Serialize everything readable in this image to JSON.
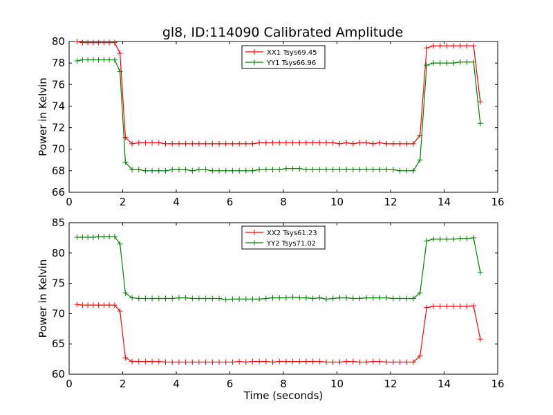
{
  "chart_data": [
    {
      "type": "line",
      "title": "gl8, ID:114090 Calibrated Amplitude",
      "xlabel": "",
      "ylabel": "Power in Kelvin",
      "xlim": [
        0,
        16
      ],
      "ylim": [
        66,
        80
      ],
      "xticks": [
        "0",
        "2",
        "4",
        "6",
        "8",
        "10",
        "12",
        "14",
        "16"
      ],
      "yticks": [
        "66",
        "68",
        "70",
        "72",
        "74",
        "76",
        "78",
        "80"
      ],
      "legend_position": "top-center",
      "x": [
        0.3,
        0.5,
        0.7,
        0.9,
        1.1,
        1.3,
        1.5,
        1.7,
        1.9,
        2.1,
        2.35,
        2.6,
        2.85,
        3.1,
        3.35,
        3.6,
        3.85,
        4.1,
        4.35,
        4.6,
        4.85,
        5.1,
        5.35,
        5.6,
        5.85,
        6.1,
        6.35,
        6.6,
        6.85,
        7.1,
        7.35,
        7.6,
        7.85,
        8.1,
        8.35,
        8.6,
        8.85,
        9.1,
        9.35,
        9.6,
        9.85,
        10.1,
        10.35,
        10.6,
        10.85,
        11.1,
        11.35,
        11.6,
        11.85,
        12.1,
        12.35,
        12.6,
        12.85,
        13.1,
        13.35,
        13.6,
        13.85,
        14.1,
        14.35,
        14.6,
        14.85,
        15.1,
        15.35
      ],
      "series": [
        {
          "name": "XX1 Tsys69.45",
          "color": "#ff0000",
          "values": [
            80.0,
            79.9,
            79.9,
            79.9,
            79.9,
            79.9,
            79.9,
            79.9,
            78.9,
            71.1,
            70.5,
            70.6,
            70.6,
            70.6,
            70.6,
            70.5,
            70.5,
            70.5,
            70.5,
            70.5,
            70.5,
            70.5,
            70.5,
            70.5,
            70.5,
            70.5,
            70.5,
            70.5,
            70.5,
            70.6,
            70.6,
            70.6,
            70.6,
            70.6,
            70.6,
            70.6,
            70.6,
            70.6,
            70.6,
            70.6,
            70.6,
            70.5,
            70.6,
            70.5,
            70.6,
            70.6,
            70.5,
            70.6,
            70.5,
            70.5,
            70.5,
            70.5,
            70.5,
            71.3,
            79.4,
            79.6,
            79.6,
            79.6,
            79.6,
            79.6,
            79.6,
            79.6,
            74.4
          ]
        },
        {
          "name": "YY1 Tsys66.96",
          "color": "#008000",
          "values": [
            78.2,
            78.3,
            78.3,
            78.3,
            78.3,
            78.3,
            78.3,
            78.3,
            77.2,
            68.8,
            68.1,
            68.1,
            68.0,
            68.0,
            68.0,
            68.0,
            68.1,
            68.1,
            68.1,
            68.0,
            68.1,
            68.1,
            68.0,
            68.0,
            68.0,
            68.0,
            68.0,
            68.0,
            68.0,
            68.1,
            68.1,
            68.1,
            68.1,
            68.2,
            68.2,
            68.2,
            68.1,
            68.1,
            68.1,
            68.1,
            68.1,
            68.1,
            68.1,
            68.1,
            68.1,
            68.1,
            68.1,
            68.1,
            68.1,
            68.1,
            68.0,
            68.0,
            68.0,
            69.0,
            77.8,
            78.0,
            78.0,
            78.0,
            78.0,
            78.1,
            78.1,
            78.1,
            72.4
          ]
        }
      ]
    },
    {
      "type": "line",
      "title": "",
      "xlabel": "Time (seconds)",
      "ylabel": "Power in Kelvin",
      "xlim": [
        0,
        16
      ],
      "ylim": [
        60,
        85
      ],
      "xticks": [
        "0",
        "2",
        "4",
        "6",
        "8",
        "10",
        "12",
        "14",
        "16"
      ],
      "yticks": [
        "60",
        "65",
        "70",
        "75",
        "80",
        "85"
      ],
      "legend_position": "top-center",
      "x": [
        0.3,
        0.5,
        0.7,
        0.9,
        1.1,
        1.3,
        1.5,
        1.7,
        1.9,
        2.1,
        2.35,
        2.6,
        2.85,
        3.1,
        3.35,
        3.6,
        3.85,
        4.1,
        4.35,
        4.6,
        4.85,
        5.1,
        5.35,
        5.6,
        5.85,
        6.1,
        6.35,
        6.6,
        6.85,
        7.1,
        7.35,
        7.6,
        7.85,
        8.1,
        8.35,
        8.6,
        8.85,
        9.1,
        9.35,
        9.6,
        9.85,
        10.1,
        10.35,
        10.6,
        10.85,
        11.1,
        11.35,
        11.6,
        11.85,
        12.1,
        12.35,
        12.6,
        12.85,
        13.1,
        13.35,
        13.6,
        13.85,
        14.1,
        14.35,
        14.6,
        14.85,
        15.1,
        15.35
      ],
      "series": [
        {
          "name": "XX2 Tsys61.23",
          "color": "#ff0000",
          "values": [
            71.5,
            71.4,
            71.4,
            71.4,
            71.4,
            71.4,
            71.4,
            71.4,
            70.4,
            62.7,
            62.1,
            62.1,
            62.1,
            62.1,
            62.1,
            62.0,
            62.0,
            62.0,
            62.0,
            62.0,
            62.0,
            62.0,
            62.0,
            62.0,
            62.0,
            62.0,
            62.1,
            62.0,
            62.1,
            62.1,
            62.1,
            62.0,
            62.1,
            62.1,
            62.1,
            62.1,
            62.1,
            62.1,
            62.1,
            62.0,
            62.0,
            62.0,
            62.1,
            62.1,
            62.0,
            62.0,
            62.1,
            62.1,
            62.0,
            62.0,
            62.0,
            62.0,
            62.0,
            63.0,
            71.0,
            71.2,
            71.2,
            71.2,
            71.2,
            71.2,
            71.2,
            71.3,
            65.8
          ]
        },
        {
          "name": "YY2 Tsys71.02",
          "color": "#008000",
          "values": [
            82.6,
            82.6,
            82.6,
            82.6,
            82.7,
            82.7,
            82.7,
            82.7,
            81.5,
            73.4,
            72.6,
            72.5,
            72.5,
            72.5,
            72.5,
            72.5,
            72.5,
            72.6,
            72.6,
            72.5,
            72.5,
            72.5,
            72.5,
            72.5,
            72.3,
            72.4,
            72.4,
            72.4,
            72.4,
            72.4,
            72.5,
            72.6,
            72.6,
            72.6,
            72.7,
            72.6,
            72.6,
            72.5,
            72.6,
            72.4,
            72.5,
            72.6,
            72.6,
            72.5,
            72.5,
            72.6,
            72.6,
            72.6,
            72.6,
            72.5,
            72.5,
            72.5,
            72.5,
            73.4,
            82.0,
            82.3,
            82.3,
            82.3,
            82.3,
            82.4,
            82.4,
            82.5,
            76.8
          ]
        }
      ]
    }
  ]
}
